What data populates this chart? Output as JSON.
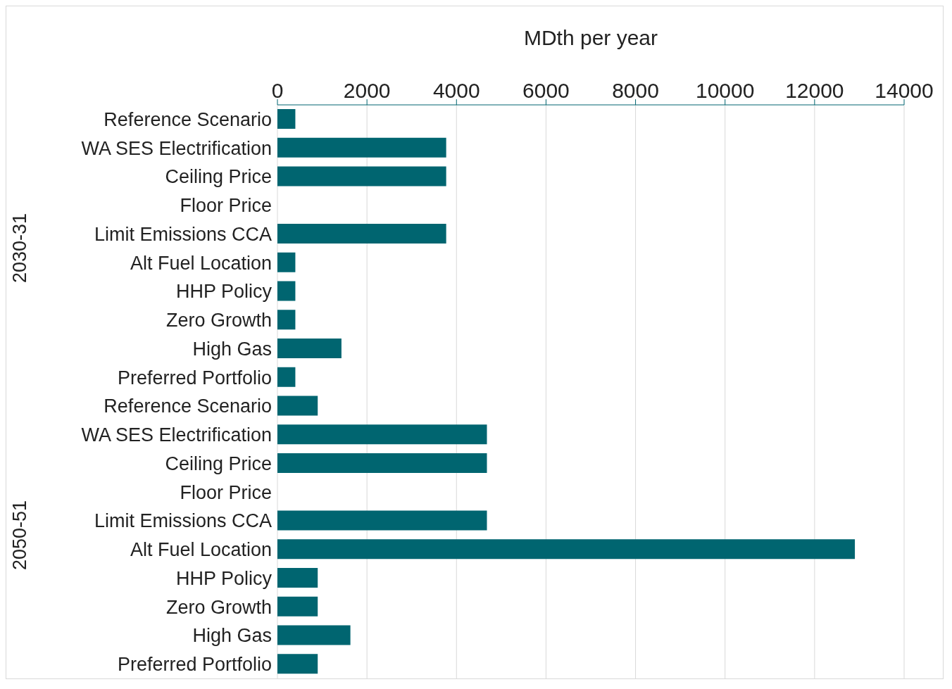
{
  "chart_data": {
    "type": "bar",
    "orientation": "horizontal",
    "xlabel": "MDth per year",
    "categories": [
      "Reference Scenario",
      "WA SES Electrification",
      "Ceiling Price",
      "Floor Price",
      "Limit Emissions CCA",
      "Alt Fuel Location",
      "HHP Policy",
      "Zero Growth",
      "High Gas",
      "Preferred Portfolio",
      "Reference Scenario",
      "WA SES Electrification",
      "Ceiling Price",
      "Floor Price",
      "Limit Emissions CCA",
      "Alt Fuel Location",
      "HHP Policy",
      "Zero Growth",
      "High Gas",
      "Preferred Portfolio"
    ],
    "values": [
      400,
      3770,
      3770,
      0,
      3770,
      400,
      400,
      400,
      1430,
      400,
      900,
      4680,
      4680,
      0,
      4680,
      12900,
      900,
      900,
      1630,
      900
    ],
    "color": "#006570",
    "xlim": [
      0,
      14000
    ],
    "xticks": [
      0,
      2000,
      4000,
      6000,
      8000,
      10000,
      12000,
      14000
    ],
    "grid": "x",
    "annotations": [
      "2030-31",
      "2050-51"
    ]
  }
}
